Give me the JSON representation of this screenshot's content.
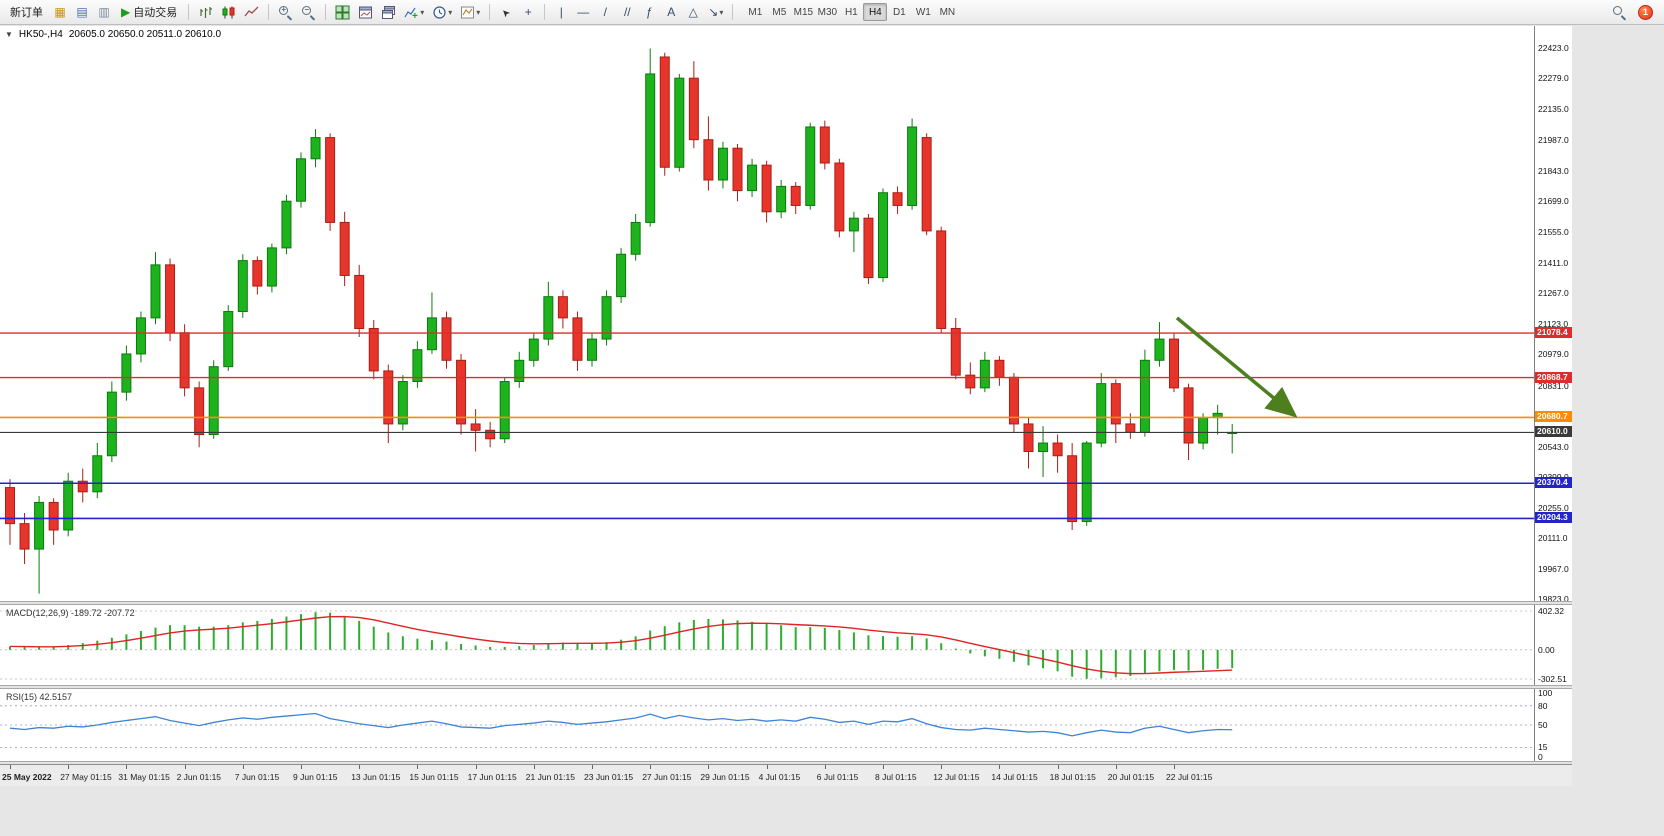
{
  "toolbar": {
    "new_order_label": "新订单",
    "auto_trading_label": "自动交易",
    "timeframes": [
      "M1",
      "M5",
      "M15",
      "M30",
      "H1",
      "H4",
      "D1",
      "W1",
      "MN"
    ],
    "active_timeframe": "H4",
    "badge_count": "1",
    "icons": {
      "market_watch": "▦",
      "data_window": "▤",
      "navigator": "▥",
      "play": "▶",
      "caret": "▾",
      "cursor": "➤",
      "crosshair": "+",
      "vertical_line": "|",
      "horizontal_line": "—",
      "trendline": "/",
      "channel": "//",
      "fibonacci": "ƒ",
      "text_tool": "A",
      "shapes": "△",
      "arrows": "↘",
      "zoom_in": "+",
      "zoom_out": "−",
      "collapse": "▼",
      "indicators_plus": "+"
    }
  },
  "chart_data": {
    "type": "candlestick",
    "title": "HK50-,H4",
    "quote": "20605.0 20650.0 20511.0 20610.0",
    "price_range": {
      "max": 22460,
      "min": 19820
    },
    "price_axis_ticks": [
      22423,
      22279,
      22135,
      21987,
      21843,
      21699,
      21555,
      21411,
      21267,
      21123,
      20979,
      20831,
      20687,
      20543,
      20399,
      20255,
      20111,
      19967,
      19823
    ],
    "hlines": [
      {
        "price": 21078.4,
        "color": "#dd2c2c",
        "width": 1.3
      },
      {
        "price": 20868.7,
        "color": "#dd2c2c",
        "width": 1.3
      },
      {
        "price": 20680.7,
        "color": "#ff8a00",
        "width": 1.6
      },
      {
        "price": 20610.0,
        "color": "#3a3a3a",
        "width": 1.1
      },
      {
        "price": 20370.4,
        "color": "#2424cc",
        "width": 1.6
      },
      {
        "price": 20204.3,
        "color": "#2424cc",
        "width": 1.6
      }
    ],
    "trend_arrow": {
      "from_index": 80.2,
      "from_price": 21150,
      "to_index": 88.3,
      "to_price": 20690,
      "color": "#4e7f1f"
    },
    "time_labels": [
      "25 May 2022",
      "27 May 01:15",
      "31 May 01:15",
      "2 Jun 01:15",
      "7 Jun 01:15",
      "9 Jun 01:15",
      "13 Jun 01:15",
      "15 Jun 01:15",
      "17 Jun 01:15",
      "21 Jun 01:15",
      "23 Jun 01:15",
      "27 Jun 01:15",
      "29 Jun 01:15",
      "4 Jul 01:15",
      "6 Jul 01:15",
      "8 Jul 01:15",
      "12 Jul 01:15",
      "14 Jul 01:15",
      "18 Jul 01:15",
      "20 Jul 01:15",
      "22 Jul 01:15"
    ],
    "candles": [
      [
        20350,
        20390,
        20080,
        20180
      ],
      [
        20180,
        20230,
        19990,
        20060
      ],
      [
        20060,
        20310,
        19850,
        20280
      ],
      [
        20280,
        20300,
        20080,
        20150
      ],
      [
        20150,
        20420,
        20120,
        20380
      ],
      [
        20380,
        20440,
        20280,
        20330
      ],
      [
        20330,
        20560,
        20300,
        20500
      ],
      [
        20500,
        20850,
        20470,
        20800
      ],
      [
        20800,
        21020,
        20760,
        20980
      ],
      [
        20980,
        21180,
        20940,
        21150
      ],
      [
        21150,
        21460,
        21120,
        21400
      ],
      [
        21400,
        21430,
        21040,
        21080
      ],
      [
        21080,
        21120,
        20780,
        20820
      ],
      [
        20820,
        20850,
        20540,
        20600
      ],
      [
        20600,
        20950,
        20580,
        20920
      ],
      [
        20920,
        21210,
        20900,
        21180
      ],
      [
        21180,
        21450,
        21150,
        21420
      ],
      [
        21420,
        21440,
        21260,
        21300
      ],
      [
        21300,
        21500,
        21270,
        21480
      ],
      [
        21480,
        21730,
        21450,
        21700
      ],
      [
        21700,
        21930,
        21670,
        21900
      ],
      [
        21900,
        22040,
        21860,
        22000
      ],
      [
        22000,
        22020,
        21560,
        21600
      ],
      [
        21600,
        21650,
        21300,
        21350
      ],
      [
        21350,
        21400,
        21060,
        21100
      ],
      [
        21100,
        21140,
        20860,
        20900
      ],
      [
        20900,
        20930,
        20560,
        20650
      ],
      [
        20650,
        20880,
        20620,
        20850
      ],
      [
        20850,
        21040,
        20820,
        21000
      ],
      [
        21000,
        21270,
        20980,
        21150
      ],
      [
        21150,
        21180,
        20910,
        20950
      ],
      [
        20950,
        20980,
        20600,
        20650
      ],
      [
        20650,
        20720,
        20520,
        20620
      ],
      [
        20620,
        20660,
        20540,
        20580
      ],
      [
        20580,
        20870,
        20560,
        20850
      ],
      [
        20850,
        20990,
        20820,
        20950
      ],
      [
        20950,
        21080,
        20920,
        21050
      ],
      [
        21050,
        21320,
        21020,
        21250
      ],
      [
        21250,
        21280,
        21100,
        21150
      ],
      [
        21150,
        21180,
        20900,
        20950
      ],
      [
        20950,
        21080,
        20920,
        21050
      ],
      [
        21050,
        21280,
        21020,
        21250
      ],
      [
        21250,
        21480,
        21220,
        21450
      ],
      [
        21450,
        21640,
        21420,
        21600
      ],
      [
        21600,
        22420,
        21580,
        22300
      ],
      [
        22380,
        22400,
        21820,
        21860
      ],
      [
        21860,
        22300,
        21840,
        22280
      ],
      [
        22280,
        22360,
        21950,
        21990
      ],
      [
        21990,
        22100,
        21750,
        21800
      ],
      [
        21800,
        21980,
        21760,
        21950
      ],
      [
        21950,
        21970,
        21700,
        21750
      ],
      [
        21750,
        21900,
        21720,
        21870
      ],
      [
        21870,
        21890,
        21600,
        21650
      ],
      [
        21650,
        21800,
        21620,
        21770
      ],
      [
        21770,
        21790,
        21640,
        21680
      ],
      [
        21680,
        22070,
        21660,
        22050
      ],
      [
        22050,
        22080,
        21850,
        21880
      ],
      [
        21880,
        21900,
        21530,
        21560
      ],
      [
        21560,
        21650,
        21460,
        21620
      ],
      [
        21620,
        21640,
        21310,
        21340
      ],
      [
        21340,
        21760,
        21320,
        21740
      ],
      [
        21740,
        21770,
        21640,
        21680
      ],
      [
        21680,
        22090,
        21660,
        22050
      ],
      [
        22000,
        22020,
        21540,
        21560
      ],
      [
        21560,
        21580,
        21080,
        21100
      ],
      [
        21100,
        21150,
        20860,
        20880
      ],
      [
        20880,
        20940,
        20790,
        20820
      ],
      [
        20820,
        20990,
        20800,
        20950
      ],
      [
        20950,
        20970,
        20830,
        20870
      ],
      [
        20870,
        20890,
        20610,
        20650
      ],
      [
        20650,
        20680,
        20440,
        20520
      ],
      [
        20520,
        20640,
        20400,
        20560
      ],
      [
        20560,
        20600,
        20420,
        20500
      ],
      [
        20500,
        20560,
        20150,
        20190
      ],
      [
        20190,
        20570,
        20170,
        20560
      ],
      [
        20560,
        20890,
        20540,
        20840
      ],
      [
        20840,
        20860,
        20560,
        20650
      ],
      [
        20650,
        20700,
        20580,
        20610
      ],
      [
        20610,
        21000,
        20590,
        20950
      ],
      [
        20950,
        21130,
        20920,
        21050
      ],
      [
        21050,
        21080,
        20800,
        20820
      ],
      [
        20820,
        20840,
        20480,
        20560
      ],
      [
        20560,
        20700,
        20530,
        20680
      ],
      [
        20680,
        20740,
        20600,
        20700
      ],
      [
        20605,
        20650,
        20511,
        20610
      ]
    ],
    "macd": {
      "label": "MACD(12,26,9) -189.72 -207.72",
      "axis_max": 402.32,
      "axis_min": -302.51,
      "axis_ticks": [
        402.32,
        0,
        -302.51
      ],
      "values": [
        35,
        30,
        25,
        30,
        50,
        70,
        95,
        125,
        160,
        195,
        230,
        255,
        255,
        240,
        240,
        255,
        285,
        300,
        320,
        345,
        370,
        390,
        385,
        350,
        300,
        240,
        180,
        140,
        115,
        100,
        85,
        60,
        45,
        30,
        30,
        38,
        50,
        68,
        75,
        68,
        68,
        80,
        105,
        140,
        200,
        245,
        285,
        310,
        320,
        315,
        305,
        290,
        270,
        255,
        235,
        235,
        228,
        205,
        180,
        150,
        142,
        136,
        142,
        118,
        68,
        12,
        -38,
        -68,
        -93,
        -124,
        -161,
        -192,
        -223,
        -279,
        -300,
        -295,
        -285,
        -272,
        -245,
        -222,
        -210,
        -215,
        -208,
        -197,
        -189.72
      ]
    },
    "rsi": {
      "label": "RSI(15) 42.5157",
      "axis_ticks": [
        100,
        80,
        50,
        15,
        0
      ],
      "levels": [
        80,
        50,
        15
      ],
      "values": [
        45,
        43,
        46,
        45,
        48,
        47,
        50,
        54,
        57,
        60,
        63,
        57,
        53,
        49,
        54,
        58,
        61,
        59,
        62,
        64,
        66,
        68,
        60,
        56,
        52,
        49,
        46,
        50,
        53,
        56,
        52,
        47,
        46,
        45,
        49,
        51,
        53,
        56,
        54,
        51,
        53,
        55,
        58,
        61,
        67,
        60,
        65,
        61,
        58,
        60,
        57,
        59,
        56,
        58,
        56,
        62,
        59,
        54,
        56,
        51,
        56,
        55,
        60,
        52,
        46,
        43,
        42,
        45,
        43,
        41,
        39,
        40,
        38,
        33,
        38,
        42,
        39,
        38,
        45,
        48,
        43,
        38,
        41,
        43,
        42.52
      ]
    },
    "colors": {
      "up_fill": "#1db31d",
      "up_stroke": "#0c7a0c",
      "down_fill": "#e8352b",
      "down_stroke": "#a81f17",
      "macd_bar": "#2dad2d",
      "macd_signal": "#e02424",
      "rsi_line": "#3f83d6",
      "background": "#ffffff"
    }
  }
}
